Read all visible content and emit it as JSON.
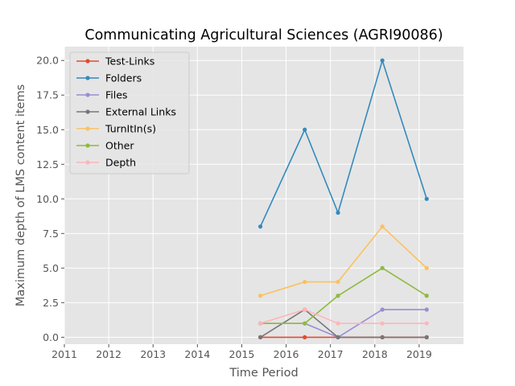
{
  "chart_data": {
    "type": "line",
    "title": "Communicating Agricultural Sciences (AGRI90086)",
    "xlabel": "Time Period",
    "ylabel": "Maximum depth of LMS content items",
    "xlim": [
      2011,
      2020
    ],
    "ylim": [
      -0.5,
      21
    ],
    "x_ticks": [
      2011,
      2012,
      2013,
      2014,
      2015,
      2016,
      2017,
      2018,
      2019
    ],
    "x_tick_labels": [
      "2011",
      "2012",
      "2013",
      "2014",
      "2015",
      "2016",
      "2017",
      "2018",
      "2019"
    ],
    "y_ticks": [
      0,
      2.5,
      5,
      7.5,
      10,
      12.5,
      15,
      17.5,
      20
    ],
    "y_tick_labels": [
      "0.0",
      "2.5",
      "5.0",
      "7.5",
      "10.0",
      "12.5",
      "15.0",
      "17.5",
      "20.0"
    ],
    "grid": true,
    "legend_position": "top-left",
    "x": [
      2015.42,
      2016.42,
      2017.17,
      2018.17,
      2019.17
    ],
    "series": [
      {
        "name": "Test-Links",
        "color": "#e24a33",
        "values": [
          0,
          0,
          0,
          0,
          0
        ]
      },
      {
        "name": "Folders",
        "color": "#348abd",
        "values": [
          8,
          15,
          9,
          20,
          10
        ]
      },
      {
        "name": "Files",
        "color": "#988ed5",
        "values": [
          1,
          1,
          0,
          2,
          2
        ]
      },
      {
        "name": "External Links",
        "color": "#777777",
        "values": [
          0,
          2,
          0,
          0,
          0
        ]
      },
      {
        "name": "TurnItIn(s)",
        "color": "#fbc15e",
        "values": [
          3,
          4,
          4,
          8,
          5
        ]
      },
      {
        "name": "Other",
        "color": "#8eba42",
        "values": [
          1,
          1,
          3,
          5,
          3
        ]
      },
      {
        "name": "Depth",
        "color": "#ffb5b8",
        "values": [
          1,
          2,
          1,
          1,
          1
        ]
      }
    ]
  }
}
